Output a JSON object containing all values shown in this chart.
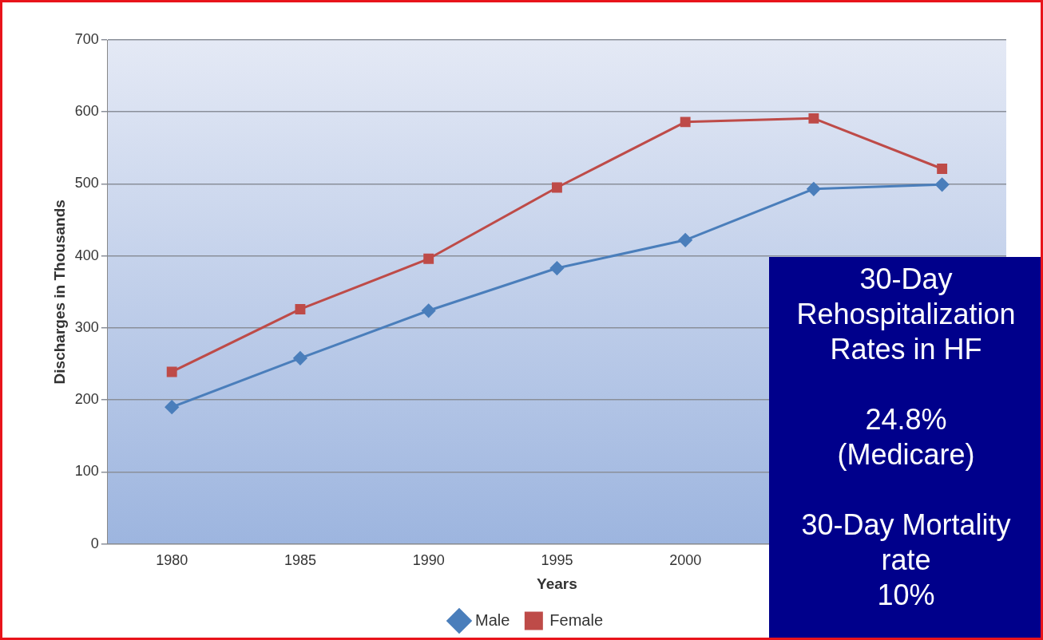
{
  "chart_data": {
    "type": "line",
    "xlabel": "Years",
    "ylabel": "Discharges in Thousands",
    "categories": [
      "1980",
      "1985",
      "1990",
      "1995",
      "2000",
      null,
      null
    ],
    "series": [
      {
        "name": "Male",
        "color": "#4a7ebb",
        "marker": "diamond",
        "values": [
          190,
          258,
          324,
          383,
          422,
          493,
          499
        ]
      },
      {
        "name": "Female",
        "color": "#be4b48",
        "marker": "square",
        "values": [
          239,
          326,
          396,
          495,
          586,
          591,
          521
        ]
      }
    ],
    "ylim": [
      0,
      700
    ],
    "yticks": [
      0,
      100,
      200,
      300,
      400,
      500,
      600,
      700
    ],
    "grid": "y",
    "legend": "bottom",
    "annotations": [
      "30-Day Rehospitalization Rates in HF",
      "24.8%\n(Medicare)",
      "30-Day Mortality\nrate\n10%"
    ]
  }
}
